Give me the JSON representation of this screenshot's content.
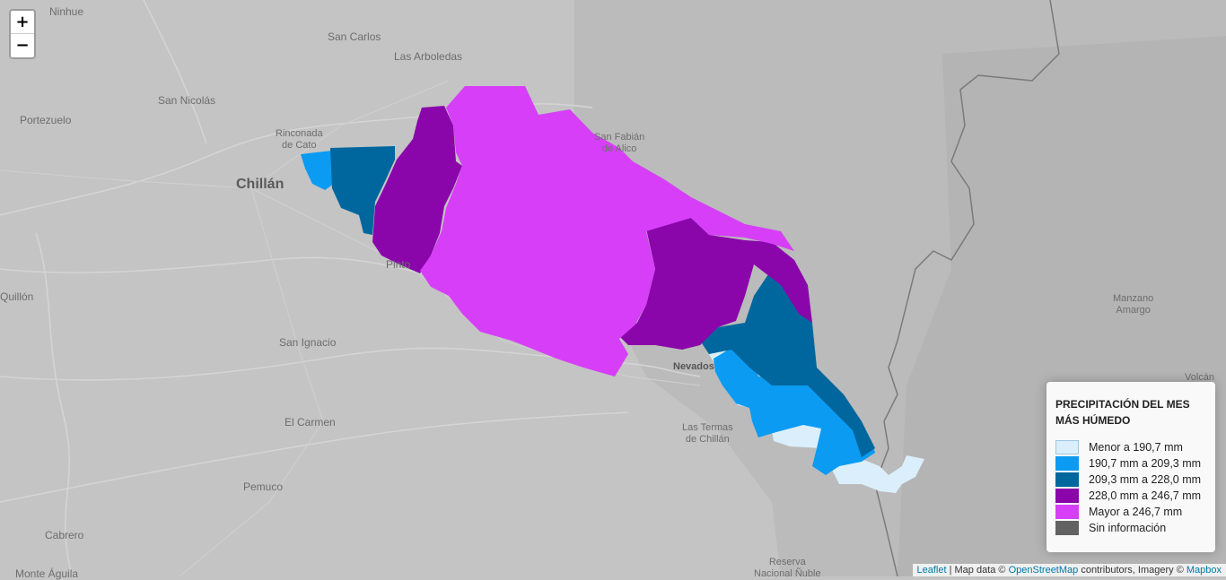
{
  "map": {
    "places": {
      "ninhue": "Ninhue",
      "san_carlos": "San Carlos",
      "las_arboledas": "Las Arboledas",
      "san_nicolas": "San Nicolás",
      "portezuelo": "Portezuelo",
      "rinconada": "Rinconada\nde Cato",
      "chillan": "Chillán",
      "san_fabian": "San Fabián\nde Alico",
      "pinto": "Pinto",
      "quillon": "Quillón",
      "san_ignacio": "San Ignacio",
      "nevados": "Nevados",
      "el_carmen": "El Carmen",
      "termas": "Las Termas\nde Chillán",
      "manzano": "Manzano\nAmargo",
      "pemuco": "Pemuco",
      "cabrero": "Cabrero",
      "monte_aguila": "Monte Águila",
      "reserva": "Reserva\nNacional Ñuble",
      "volcan": "Volcán"
    }
  },
  "zoom": {
    "in_label": "+",
    "out_label": "−"
  },
  "legend": {
    "title": "PRECIPITACIÓN DEL MES MÁS HÚMEDO",
    "items": [
      {
        "label": "Menor a 190,7 mm",
        "color": "#dbeefb"
      },
      {
        "label": "190,7 mm a 209,3 mm",
        "color": "#0b9bf2"
      },
      {
        "label": "209,3 mm a 228,0 mm",
        "color": "#00679e"
      },
      {
        "label": "228,0 mm a 246,7 mm",
        "color": "#8a06ab"
      },
      {
        "label": "Mayor a 246,7 mm",
        "color": "#d63ff7"
      },
      {
        "label": "Sin información",
        "color": "#626262"
      }
    ]
  },
  "attribution": {
    "leaflet": "Leaflet",
    "sep": " | Map data © ",
    "osm": "OpenStreetMap",
    "mid": " contributors, Imagery © ",
    "mapbox": "Mapbox"
  }
}
